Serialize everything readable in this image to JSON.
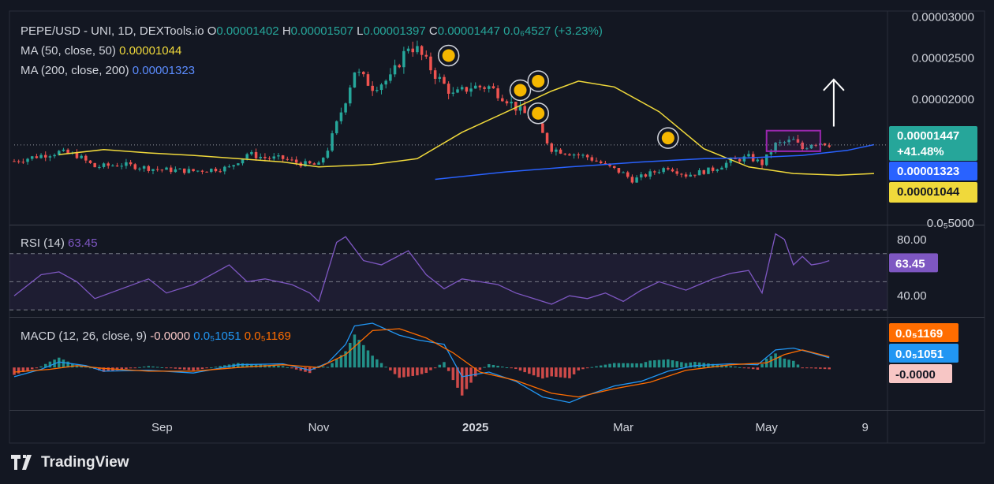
{
  "chart_data": {
    "type": "candlestick",
    "symbol": "PEPE/USD",
    "exchange": "UNI",
    "interval": "1D",
    "source": "DEXTools.io",
    "ohlc": {
      "O": "0.00001402",
      "H": "0.00001507",
      "L": "0.00001397",
      "C": "0.00001447",
      "change": "0.0₆4527",
      "change_pct": "(+3.23%)"
    },
    "ma50": {
      "label": "MA (50, close, 50)",
      "value": "0.00001044",
      "color": "#f0d93b"
    },
    "ma200": {
      "label": "MA (200, close, 200)",
      "value": "0.00001323",
      "color": "#2962ff"
    },
    "price_axis": {
      "ticks": [
        "0.00003000",
        "0.00002500",
        "0.00002000",
        "0.0₅5000"
      ],
      "ylim": [
        4.8e-06,
        3.07e-05
      ]
    },
    "last_price": {
      "value": "0.00001447",
      "change": "+41.48%"
    },
    "time_axis": [
      "Sep",
      "Nov",
      "2025",
      "Mar",
      "May",
      "9"
    ],
    "price_path": [
      [
        0,
        1.25e-05
      ],
      [
        6,
        1.32e-05
      ],
      [
        10,
        1.36e-05
      ],
      [
        14,
        1.32e-05
      ],
      [
        18,
        1.18e-05
      ],
      [
        24,
        1.21e-05
      ],
      [
        32,
        1.15e-05
      ],
      [
        40,
        1.13e-05
      ],
      [
        48,
        1.17e-05
      ],
      [
        52,
        1.34e-05
      ],
      [
        56,
        1.29e-05
      ],
      [
        60,
        1.28e-05
      ],
      [
        64,
        1.22e-05
      ],
      [
        68,
        1.2e-05
      ],
      [
        70,
        1.4e-05
      ],
      [
        74,
        2e-05
      ],
      [
        76,
        2.35e-05
      ],
      [
        80,
        2.15e-05
      ],
      [
        84,
        2.25e-05
      ],
      [
        88,
        2.65e-05
      ],
      [
        90,
        2.6e-05
      ],
      [
        94,
        2.3e-05
      ],
      [
        98,
        2.05e-05
      ],
      [
        102,
        2.15e-05
      ],
      [
        106,
        2.15e-05
      ],
      [
        110,
        2e-05
      ],
      [
        112,
        1.9e-05
      ],
      [
        116,
        1.75e-05
      ],
      [
        120,
        1.4e-05
      ],
      [
        124,
        1.35e-05
      ],
      [
        128,
        1.3e-05
      ],
      [
        132,
        1.2e-05
      ],
      [
        136,
        1.1e-05
      ],
      [
        138,
        1.02e-05
      ],
      [
        142,
        1.1e-05
      ],
      [
        146,
        1.18e-05
      ],
      [
        150,
        1.08e-05
      ],
      [
        156,
        1.15e-05
      ],
      [
        160,
        1.25e-05
      ],
      [
        164,
        1.3e-05
      ],
      [
        167,
        1.22e-05
      ],
      [
        170,
        1.45e-05
      ],
      [
        174,
        1.5e-05
      ],
      [
        176,
        1.4e-05
      ],
      [
        178,
        1.47e-05
      ],
      [
        180,
        1.48e-05
      ],
      [
        182,
        1.46e-05
      ]
    ],
    "ma50_path": [
      [
        10,
        1.33e-05
      ],
      [
        20,
        1.39e-05
      ],
      [
        30,
        1.35e-05
      ],
      [
        40,
        1.32e-05
      ],
      [
        50,
        1.28e-05
      ],
      [
        60,
        1.24e-05
      ],
      [
        68,
        1.18e-05
      ],
      [
        80,
        1.21e-05
      ],
      [
        90,
        1.28e-05
      ],
      [
        100,
        1.6e-05
      ],
      [
        110,
        1.85e-05
      ],
      [
        120,
        2.1e-05
      ],
      [
        126,
        2.22e-05
      ],
      [
        134,
        2.15e-05
      ],
      [
        144,
        1.85e-05
      ],
      [
        154,
        1.4e-05
      ],
      [
        164,
        1.18e-05
      ],
      [
        174,
        1.1e-05
      ],
      [
        184,
        1.08e-05
      ],
      [
        192,
        1.1e-05
      ]
    ],
    "ma200_path": [
      [
        94,
        1.03e-05
      ],
      [
        110,
        1.12e-05
      ],
      [
        124,
        1.18e-05
      ],
      [
        140,
        1.24e-05
      ],
      [
        154,
        1.28e-05
      ],
      [
        164,
        1.29e-05
      ],
      [
        176,
        1.32e-05
      ],
      [
        186,
        1.38e-05
      ],
      [
        192,
        1.45e-05
      ]
    ],
    "annotations": [
      {
        "x": 97,
        "y": 2.53e-05
      },
      {
        "x": 113,
        "y": 2.11e-05
      },
      {
        "x": 117,
        "y": 2.22e-05
      },
      {
        "x": 117,
        "y": 1.83e-05
      },
      {
        "x": 146,
        "y": 1.53e-05
      }
    ],
    "highlight_box": {
      "x0": 168,
      "x1": 180,
      "y0": 1.37e-05,
      "y1": 1.62e-05
    },
    "up_arrow": {
      "x": 183,
      "y0": 1.67e-05,
      "y1": 2.24e-05
    },
    "rsi": {
      "label": "RSI (14)",
      "value": "63.45",
      "color": "#7e57c2",
      "ticks": [
        "80.00",
        "40.00"
      ],
      "ylim": [
        25,
        90
      ],
      "levels": [
        70,
        50,
        30
      ],
      "path": [
        [
          0,
          40
        ],
        [
          6,
          55
        ],
        [
          10,
          57
        ],
        [
          14,
          50
        ],
        [
          18,
          38
        ],
        [
          24,
          45
        ],
        [
          30,
          52
        ],
        [
          34,
          42
        ],
        [
          40,
          48
        ],
        [
          48,
          62
        ],
        [
          52,
          50
        ],
        [
          56,
          52
        ],
        [
          62,
          48
        ],
        [
          66,
          42
        ],
        [
          68,
          36
        ],
        [
          72,
          78
        ],
        [
          74,
          82
        ],
        [
          78,
          65
        ],
        [
          82,
          62
        ],
        [
          88,
          72
        ],
        [
          92,
          55
        ],
        [
          96,
          45
        ],
        [
          100,
          52
        ],
        [
          104,
          50
        ],
        [
          108,
          48
        ],
        [
          112,
          42
        ],
        [
          116,
          38
        ],
        [
          120,
          34
        ],
        [
          124,
          40
        ],
        [
          128,
          38
        ],
        [
          132,
          42
        ],
        [
          136,
          36
        ],
        [
          140,
          44
        ],
        [
          144,
          50
        ],
        [
          150,
          44
        ],
        [
          156,
          52
        ],
        [
          160,
          56
        ],
        [
          164,
          58
        ],
        [
          167,
          42
        ],
        [
          170,
          84
        ],
        [
          172,
          80
        ],
        [
          174,
          62
        ],
        [
          176,
          68
        ],
        [
          178,
          62
        ],
        [
          180,
          63
        ],
        [
          182,
          65
        ]
      ]
    },
    "macd": {
      "label": "MACD (12, 26, close, 9)",
      "value": "-0.0000",
      "macd_val": "0.0₅1051",
      "signal_val": "0.0₅1169",
      "macd_color": "#2196f3",
      "signal_color": "#ff6d00",
      "ylim": [
        -4.6,
        5.4
      ],
      "macd_path": [
        [
          0,
          -1.0
        ],
        [
          6,
          -0.2
        ],
        [
          10,
          0.6
        ],
        [
          16,
          0.2
        ],
        [
          20,
          -0.4
        ],
        [
          30,
          -0.3
        ],
        [
          40,
          -0.6
        ],
        [
          50,
          0.3
        ],
        [
          60,
          0.4
        ],
        [
          66,
          -0.3
        ],
        [
          70,
          0.5
        ],
        [
          74,
          2.5
        ],
        [
          76,
          4.5
        ],
        [
          80,
          4.8
        ],
        [
          86,
          3.5
        ],
        [
          90,
          3.0
        ],
        [
          96,
          2.5
        ],
        [
          100,
          -1.0
        ],
        [
          106,
          -0.5
        ],
        [
          112,
          -1.5
        ],
        [
          118,
          -3.2
        ],
        [
          124,
          -3.8
        ],
        [
          128,
          -3.0
        ],
        [
          134,
          -2.0
        ],
        [
          140,
          -1.5
        ],
        [
          146,
          -0.4
        ],
        [
          152,
          0.2
        ],
        [
          160,
          0.4
        ],
        [
          166,
          0.3
        ],
        [
          170,
          1.9
        ],
        [
          174,
          2.1
        ],
        [
          178,
          1.6
        ],
        [
          182,
          1.05
        ]
      ],
      "signal_path": [
        [
          0,
          -0.5
        ],
        [
          8,
          -0.2
        ],
        [
          14,
          0.2
        ],
        [
          20,
          -0.1
        ],
        [
          30,
          -0.4
        ],
        [
          40,
          -0.4
        ],
        [
          50,
          0.0
        ],
        [
          60,
          0.3
        ],
        [
          68,
          0.0
        ],
        [
          74,
          1.4
        ],
        [
          80,
          4.0
        ],
        [
          86,
          4.2
        ],
        [
          92,
          3.2
        ],
        [
          98,
          1.6
        ],
        [
          104,
          -0.5
        ],
        [
          112,
          -1.4
        ],
        [
          120,
          -2.8
        ],
        [
          126,
          -3.2
        ],
        [
          134,
          -2.3
        ],
        [
          142,
          -1.6
        ],
        [
          150,
          -0.3
        ],
        [
          160,
          0.3
        ],
        [
          168,
          0.5
        ],
        [
          172,
          1.4
        ],
        [
          176,
          1.9
        ],
        [
          182,
          1.17
        ]
      ]
    }
  },
  "branding": {
    "name": "TradingView"
  }
}
